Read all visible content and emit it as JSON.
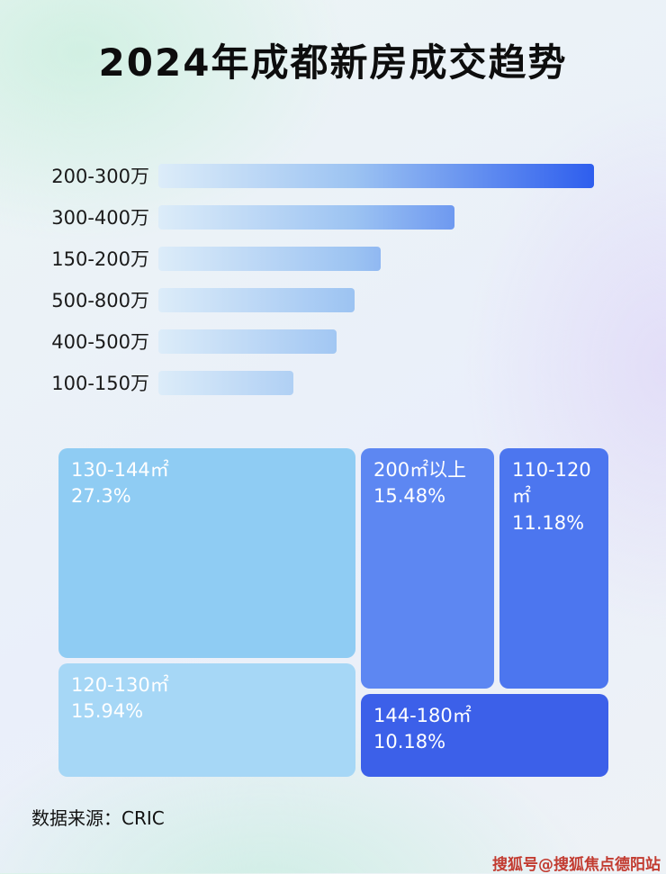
{
  "page": {
    "title": "2024年成都新房成交趋势",
    "source": "数据来源：CRIC",
    "watermark": "搜狐号@搜狐焦点德阳站"
  },
  "chart_data": [
    {
      "type": "bar",
      "orientation": "horizontal",
      "title": "2024年成都新房成交趋势",
      "categories": [
        "200-300万",
        "300-400万",
        "150-200万",
        "500-800万",
        "400-500万",
        "100-150万"
      ],
      "values": [
        100,
        68,
        51,
        45,
        41,
        31
      ],
      "values_unit": "relative_bar_length_pct_no_axis_shown",
      "xlabel": "",
      "ylabel": "",
      "grid": false,
      "legend": false,
      "bar_gradient": [
        "#dcecf9",
        "#2e5eee"
      ]
    },
    {
      "type": "treemap",
      "title": "",
      "items": [
        {
          "label": "130-144㎡",
          "value": 27.3,
          "value_text": "27.3%",
          "color": "#8fccf3"
        },
        {
          "label": "120-130㎡",
          "value": 15.94,
          "value_text": "15.94%",
          "color": "#a6d7f6"
        },
        {
          "label": "200㎡以上",
          "value": 15.48,
          "value_text": "15.48%",
          "color": "#5d87f2"
        },
        {
          "label": "110-120㎡",
          "value": 11.18,
          "value_text": "11.18%",
          "color": "#4c76ef"
        },
        {
          "label": "144-180㎡",
          "value": 10.18,
          "value_text": "10.18%",
          "color": "#3c60e9"
        }
      ]
    }
  ]
}
